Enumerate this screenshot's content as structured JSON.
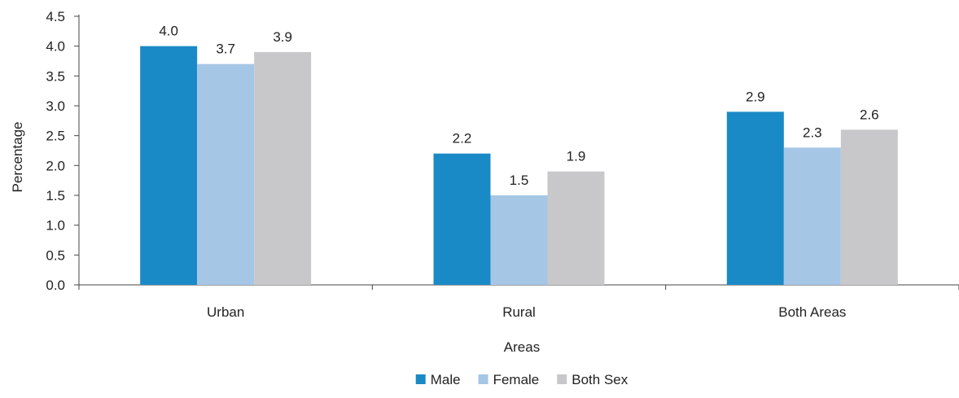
{
  "chart_data": {
    "type": "bar",
    "categories": [
      "Urban",
      "Rural",
      "Both Areas"
    ],
    "series": [
      {
        "name": "Male",
        "values": [
          4.0,
          2.2,
          2.9
        ],
        "color": "#1a8ac6"
      },
      {
        "name": "Female",
        "values": [
          3.7,
          1.5,
          2.3
        ],
        "color": "#a6c6e6"
      },
      {
        "name": "Both Sex",
        "values": [
          3.9,
          1.9,
          2.6
        ],
        "color": "#c8c8ca"
      }
    ],
    "data_labels": [
      [
        "4.0",
        "3.7",
        "3.9"
      ],
      [
        "2.2",
        "1.5",
        "1.9"
      ],
      [
        "2.9",
        "2.3",
        "2.6"
      ]
    ],
    "yticks": [
      "0.0",
      "0.5",
      "1.0",
      "1.5",
      "2.0",
      "2.5",
      "3.0",
      "3.5",
      "4.0",
      "4.5"
    ],
    "ylim": [
      0,
      4.5
    ],
    "xlabel": "Areas",
    "ylabel": "Percentage",
    "legend_position": "bottom-center",
    "grid": false
  }
}
